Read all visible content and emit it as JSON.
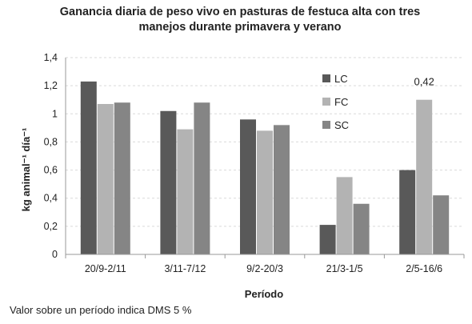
{
  "chart_data": {
    "type": "bar",
    "title_line1": "Ganancia diaria de peso vivo en pasturas de festuca alta con tres",
    "title_line2": "manejos durante primavera y verano",
    "xlabel": "Período",
    "ylabel": "kg animal⁻¹ día⁻¹",
    "ylim": [
      0,
      1.4
    ],
    "yticks": [
      "0",
      "0,2",
      "0,4",
      "0,6",
      "0,8",
      "1",
      "1,2",
      "1,4"
    ],
    "categories": [
      "20/9-2/11",
      "3/11-7/12",
      "9/2-20/3",
      "21/3-1/5",
      "2/5-16/6"
    ],
    "series": [
      {
        "name": "LC",
        "color": "#595959",
        "values": [
          1.23,
          1.02,
          0.96,
          0.21,
          0.6
        ]
      },
      {
        "name": "FC",
        "color": "#b3b3b3",
        "values": [
          1.07,
          0.89,
          0.88,
          0.55,
          1.1
        ]
      },
      {
        "name": "SC",
        "color": "#858585",
        "values": [
          1.08,
          1.08,
          0.92,
          0.36,
          0.42
        ]
      }
    ],
    "grid": true,
    "legend_position": "right",
    "annotation": {
      "text": "0,42",
      "category_index": 4
    }
  },
  "footnote": "Valor sobre un período indica DMS 5 %"
}
